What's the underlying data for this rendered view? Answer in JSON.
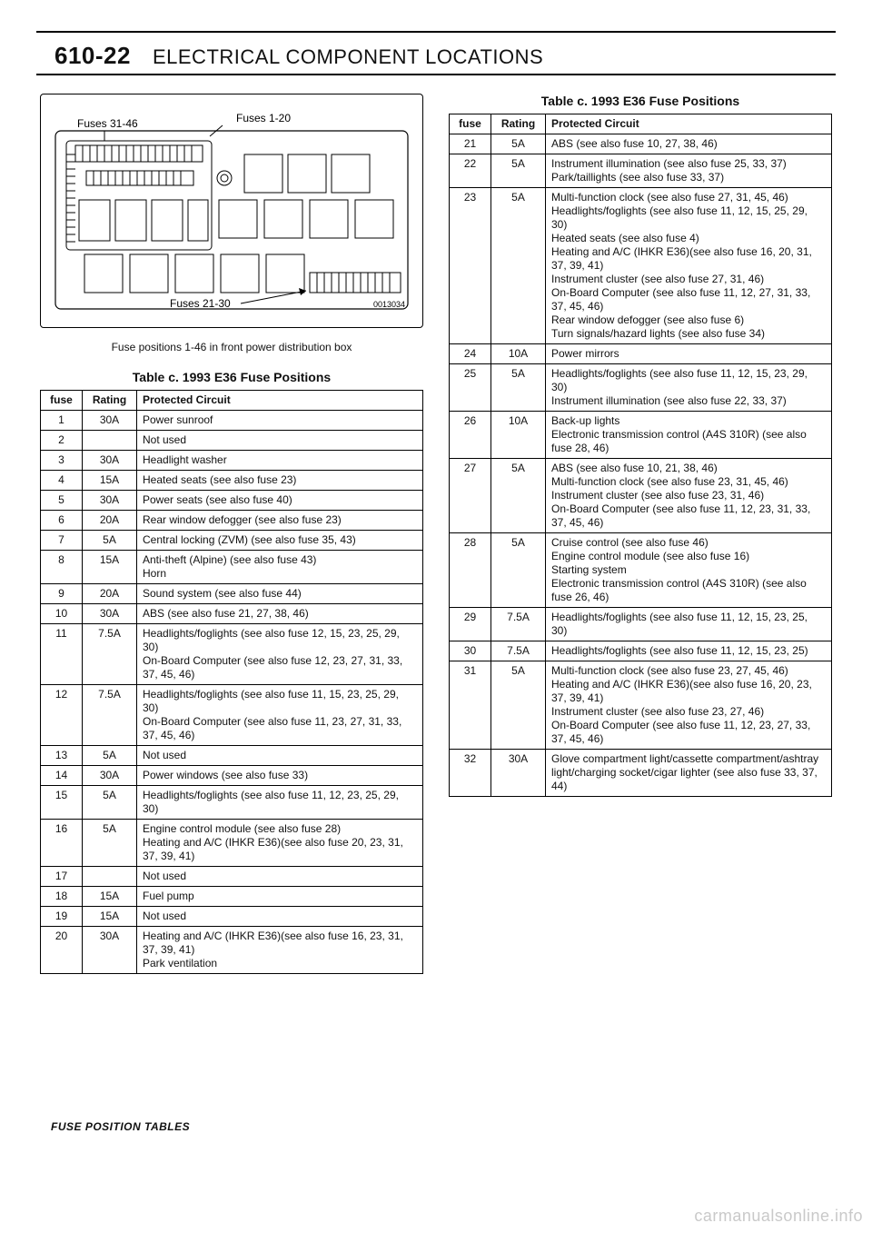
{
  "header": {
    "page_number": "610-22",
    "title": "ELECTRICAL COMPONENT LOCATIONS"
  },
  "diagram": {
    "label_fuses_31_46": "Fuses 31-46",
    "label_fuses_1_20": "Fuses 1-20",
    "label_fuses_21_30": "Fuses 21-30",
    "ref_number": "0013034",
    "caption": "Fuse positions 1-46 in front power distribution box"
  },
  "table_title": "Table c. 1993 E36 Fuse Positions",
  "columns": {
    "fuse": "fuse",
    "rating": "Rating",
    "circuit": "Protected Circuit"
  },
  "left_rows": [
    {
      "fuse": "1",
      "rating": "30A",
      "circuit": "Power sunroof"
    },
    {
      "fuse": "2",
      "rating": "",
      "circuit": "Not used"
    },
    {
      "fuse": "3",
      "rating": "30A",
      "circuit": "Headlight washer"
    },
    {
      "fuse": "4",
      "rating": "15A",
      "circuit": "Heated seats (see also fuse 23)"
    },
    {
      "fuse": "5",
      "rating": "30A",
      "circuit": "Power seats (see also fuse 40)"
    },
    {
      "fuse": "6",
      "rating": "20A",
      "circuit": "Rear window defogger (see also fuse 23)"
    },
    {
      "fuse": "7",
      "rating": "5A",
      "circuit": "Central locking (ZVM) (see also fuse 35, 43)"
    },
    {
      "fuse": "8",
      "rating": "15A",
      "circuit": "Anti-theft (Alpine) (see also fuse 43)\nHorn"
    },
    {
      "fuse": "9",
      "rating": "20A",
      "circuit": "Sound system (see also fuse 44)"
    },
    {
      "fuse": "10",
      "rating": "30A",
      "circuit": "ABS (see also fuse 21, 27, 38, 46)"
    },
    {
      "fuse": "11",
      "rating": "7.5A",
      "circuit": "Headlights/foglights (see also fuse 12, 15, 23, 25, 29, 30)\nOn-Board Computer (see also fuse 12, 23, 27, 31, 33, 37, 45, 46)"
    },
    {
      "fuse": "12",
      "rating": "7.5A",
      "circuit": "Headlights/foglights (see also fuse 11, 15, 23, 25, 29, 30)\nOn-Board Computer (see also fuse 11, 23, 27, 31, 33, 37, 45, 46)"
    },
    {
      "fuse": "13",
      "rating": "5A",
      "circuit": "Not used"
    },
    {
      "fuse": "14",
      "rating": "30A",
      "circuit": "Power windows (see also fuse 33)"
    },
    {
      "fuse": "15",
      "rating": "5A",
      "circuit": "Headlights/foglights (see also fuse 11, 12, 23, 25, 29, 30)"
    },
    {
      "fuse": "16",
      "rating": "5A",
      "circuit": "Engine control module (see also fuse 28)\nHeating and A/C (IHKR E36)(see also fuse 20, 23, 31, 37, 39, 41)"
    },
    {
      "fuse": "17",
      "rating": "",
      "circuit": "Not used"
    },
    {
      "fuse": "18",
      "rating": "15A",
      "circuit": "Fuel pump"
    },
    {
      "fuse": "19",
      "rating": "15A",
      "circuit": "Not used"
    },
    {
      "fuse": "20",
      "rating": "30A",
      "circuit": "Heating and A/C (IHKR E36)(see also fuse 16, 23, 31, 37, 39, 41)\nPark ventilation"
    }
  ],
  "right_rows": [
    {
      "fuse": "21",
      "rating": "5A",
      "circuit": "ABS (see also fuse 10, 27, 38, 46)"
    },
    {
      "fuse": "22",
      "rating": "5A",
      "circuit": "Instrument illumination (see also fuse 25, 33, 37)\nPark/taillights (see also fuse 33, 37)"
    },
    {
      "fuse": "23",
      "rating": "5A",
      "circuit": "Multi-function clock (see also fuse 27, 31, 45, 46)\nHeadlights/foglights (see also fuse 11, 12, 15, 25, 29, 30)\nHeated seats (see also fuse 4)\nHeating and A/C (IHKR E36)(see also fuse 16, 20, 31, 37, 39, 41)\nInstrument cluster (see also fuse 27, 31, 46)\nOn-Board Computer (see also fuse 11, 12, 27, 31, 33, 37, 45, 46)\nRear window defogger (see also fuse 6)\nTurn signals/hazard lights (see also fuse 34)"
    },
    {
      "fuse": "24",
      "rating": "10A",
      "circuit": "Power mirrors"
    },
    {
      "fuse": "25",
      "rating": "5A",
      "circuit": "Headlights/foglights (see also fuse 11, 12, 15, 23, 29, 30)\nInstrument illumination (see also fuse 22, 33, 37)"
    },
    {
      "fuse": "26",
      "rating": "10A",
      "circuit": "Back-up lights\nElectronic transmission control (A4S 310R) (see also fuse 28, 46)"
    },
    {
      "fuse": "27",
      "rating": "5A",
      "circuit": "ABS (see also fuse 10, 21, 38, 46)\nMulti-function clock (see also fuse 23, 31, 45, 46)\nInstrument cluster (see also fuse 23, 31, 46)\nOn-Board Computer (see also fuse 11, 12, 23, 31, 33, 37, 45, 46)"
    },
    {
      "fuse": "28",
      "rating": "5A",
      "circuit": "Cruise control (see also fuse 46)\nEngine control module (see also fuse 16)\nStarting system\nElectronic transmission control (A4S 310R) (see also fuse 26, 46)"
    },
    {
      "fuse": "29",
      "rating": "7.5A",
      "circuit": "Headlights/foglights (see also fuse 11, 12, 15, 23, 25, 30)"
    },
    {
      "fuse": "30",
      "rating": "7.5A",
      "circuit": "Headlights/foglights (see also fuse 11, 12, 15, 23, 25)"
    },
    {
      "fuse": "31",
      "rating": "5A",
      "circuit": "Multi-function clock (see also fuse 23, 27, 45, 46)\nHeating and A/C (IHKR E36)(see also fuse 16, 20, 23, 37, 39, 41)\nInstrument cluster (see also fuse 23, 27, 46)\nOn-Board Computer (see also fuse 11, 12, 23, 27, 33, 37, 45, 46)"
    },
    {
      "fuse": "32",
      "rating": "30A",
      "circuit": "Glove compartment light/cassette compartment/ashtray light/charging socket/cigar lighter (see also fuse 33, 37, 44)"
    }
  ],
  "footer": "FUSE POSITION TABLES",
  "watermark": "carmanualsonline.info"
}
